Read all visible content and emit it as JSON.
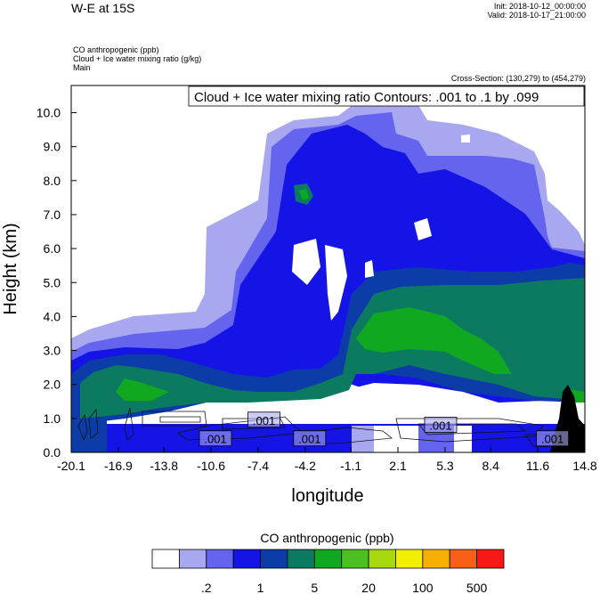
{
  "header": {
    "title": "W-E at 15S",
    "init": "Init: 2018-10-12_00:00:00",
    "valid": "Valid: 2018-10-17_21:00:00",
    "fields": [
      "CO anthropogenic   (ppb)",
      "Cloud + Ice water mixing ratio   (g/kg)",
      "Main"
    ],
    "cross_section": "Cross-Section: (130,279) to (454,279)"
  },
  "chart_data": {
    "type": "heatmap",
    "title": "W-E at 15S",
    "xlabel": "longitude",
    "ylabel": "Height (km)",
    "x_ticks": [
      "-20.1",
      "-16.9",
      "-13.8",
      "-10.6",
      "-7.4",
      "-4.2",
      "-1.1",
      "2.1",
      "5.3",
      "8.4",
      "11.6",
      "14.8"
    ],
    "xlim": [
      -20.1,
      14.8
    ],
    "y_ticks": [
      "0.0",
      "1.0",
      "2.0",
      "3.0",
      "4.0",
      "5.0",
      "6.0",
      "7.0",
      "8.0",
      "9.0",
      "10.0"
    ],
    "ylim": [
      0,
      10.8
    ],
    "contour_legend": "Cloud + Ice water mixing ratio Contours: .001 to .1 by .099",
    "contour_labels": [
      {
        "text": ".001",
        "x": -7.0,
        "y": 0.95
      },
      {
        "text": ".001",
        "x": -10.3,
        "y": 0.4
      },
      {
        "text": ".001",
        "x": -3.9,
        "y": 0.4
      },
      {
        "text": ".001",
        "x": 5.0,
        "y": 0.8
      },
      {
        "text": ".001",
        "x": 12.6,
        "y": 0.4
      }
    ],
    "colorbar": {
      "title": "CO anthropogenic  (ppb)",
      "colors": [
        "#ffffff",
        "#a8a8f0",
        "#6464ee",
        "#1414e6",
        "#0c3ca8",
        "#0c7a60",
        "#10a820",
        "#4cc020",
        "#a8d810",
        "#f0f000",
        "#f8b000",
        "#f86018",
        "#f81818"
      ],
      "tick_labels": [
        ".2",
        "1",
        "5",
        "20",
        "100",
        "500"
      ]
    }
  }
}
